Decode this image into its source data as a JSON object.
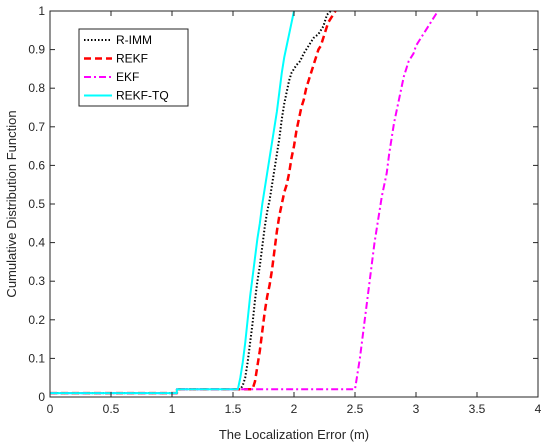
{
  "chart_data": {
    "type": "line",
    "title": "",
    "xlabel": "The Localization Error (m)",
    "ylabel": "Cumulative Distribution Function",
    "xlim": [
      0,
      4
    ],
    "ylim": [
      0,
      1
    ],
    "xticks": [
      "0",
      "0.5",
      "1",
      "1.5",
      "2",
      "2.5",
      "3",
      "3.5",
      "4"
    ],
    "yticks": [
      "0",
      "0.1",
      "0.2",
      "0.3",
      "0.4",
      "0.5",
      "0.6",
      "0.7",
      "0.8",
      "0.9",
      "1"
    ],
    "grid": false,
    "legend_position": "top-left",
    "series": [
      {
        "name": "R-IMM",
        "color": "#000000",
        "style": "dotted",
        "x": [
          0,
          1.04,
          1.04,
          1.56,
          1.58,
          1.6,
          1.62,
          1.64,
          1.66,
          1.68,
          1.7,
          1.72,
          1.74,
          1.76,
          1.78,
          1.8,
          1.82,
          1.84,
          1.86,
          1.88,
          1.9,
          1.92,
          1.94,
          1.96,
          1.98,
          2.0,
          2.02,
          2.05,
          2.08,
          2.12,
          2.16,
          2.2,
          2.24,
          2.27,
          2.3
        ],
        "y": [
          0.01,
          0.01,
          0.02,
          0.02,
          0.03,
          0.05,
          0.09,
          0.14,
          0.19,
          0.25,
          0.3,
          0.34,
          0.39,
          0.44,
          0.48,
          0.51,
          0.55,
          0.59,
          0.63,
          0.67,
          0.72,
          0.76,
          0.79,
          0.82,
          0.84,
          0.85,
          0.86,
          0.87,
          0.89,
          0.91,
          0.93,
          0.94,
          0.96,
          0.99,
          1.0
        ]
      },
      {
        "name": "REKF",
        "color": "#ff0000",
        "style": "dashed",
        "x": [
          0,
          1.04,
          1.04,
          1.66,
          1.68,
          1.7,
          1.72,
          1.74,
          1.76,
          1.78,
          1.8,
          1.82,
          1.84,
          1.86,
          1.88,
          1.9,
          1.92,
          1.94,
          1.96,
          1.98,
          2.0,
          2.02,
          2.04,
          2.06,
          2.08,
          2.1,
          2.12,
          2.14,
          2.16,
          2.18,
          2.2,
          2.22,
          2.24,
          2.26,
          2.28,
          2.3,
          2.32,
          2.34
        ],
        "y": [
          0.01,
          0.01,
          0.02,
          0.02,
          0.04,
          0.08,
          0.12,
          0.17,
          0.22,
          0.26,
          0.29,
          0.33,
          0.38,
          0.43,
          0.47,
          0.5,
          0.53,
          0.55,
          0.58,
          0.62,
          0.65,
          0.69,
          0.72,
          0.75,
          0.77,
          0.8,
          0.82,
          0.84,
          0.86,
          0.88,
          0.9,
          0.91,
          0.93,
          0.95,
          0.97,
          0.98,
          0.99,
          1.0
        ]
      },
      {
        "name": "EKF",
        "color": "#ff00ff",
        "style": "dashdot",
        "x": [
          0,
          1.04,
          1.04,
          2.5,
          2.52,
          2.54,
          2.56,
          2.58,
          2.6,
          2.62,
          2.64,
          2.66,
          2.68,
          2.7,
          2.72,
          2.74,
          2.76,
          2.78,
          2.8,
          2.82,
          2.84,
          2.86,
          2.88,
          2.9,
          2.92,
          2.94,
          2.96,
          2.98,
          3.0,
          3.02,
          3.04,
          3.06,
          3.08,
          3.1,
          3.12,
          3.14,
          3.16,
          3.18
        ],
        "y": [
          0.01,
          0.01,
          0.02,
          0.02,
          0.06,
          0.1,
          0.15,
          0.2,
          0.25,
          0.3,
          0.35,
          0.4,
          0.44,
          0.48,
          0.52,
          0.55,
          0.58,
          0.63,
          0.67,
          0.71,
          0.74,
          0.77,
          0.8,
          0.83,
          0.85,
          0.87,
          0.88,
          0.89,
          0.91,
          0.92,
          0.93,
          0.94,
          0.95,
          0.96,
          0.97,
          0.98,
          0.99,
          1.0
        ]
      },
      {
        "name": "REKF-TQ",
        "color": "#00ffff",
        "style": "solid",
        "x": [
          0,
          1.04,
          1.04,
          1.54,
          1.56,
          1.58,
          1.6,
          1.62,
          1.64,
          1.66,
          1.68,
          1.7,
          1.72,
          1.74,
          1.76,
          1.78,
          1.8,
          1.82,
          1.84,
          1.86,
          1.88,
          1.9,
          1.92,
          1.94,
          1.96,
          1.98,
          2.0
        ],
        "y": [
          0.01,
          0.01,
          0.02,
          0.02,
          0.05,
          0.09,
          0.14,
          0.2,
          0.26,
          0.31,
          0.36,
          0.41,
          0.45,
          0.5,
          0.54,
          0.58,
          0.62,
          0.66,
          0.7,
          0.74,
          0.79,
          0.84,
          0.88,
          0.91,
          0.94,
          0.97,
          1.0
        ]
      }
    ]
  }
}
